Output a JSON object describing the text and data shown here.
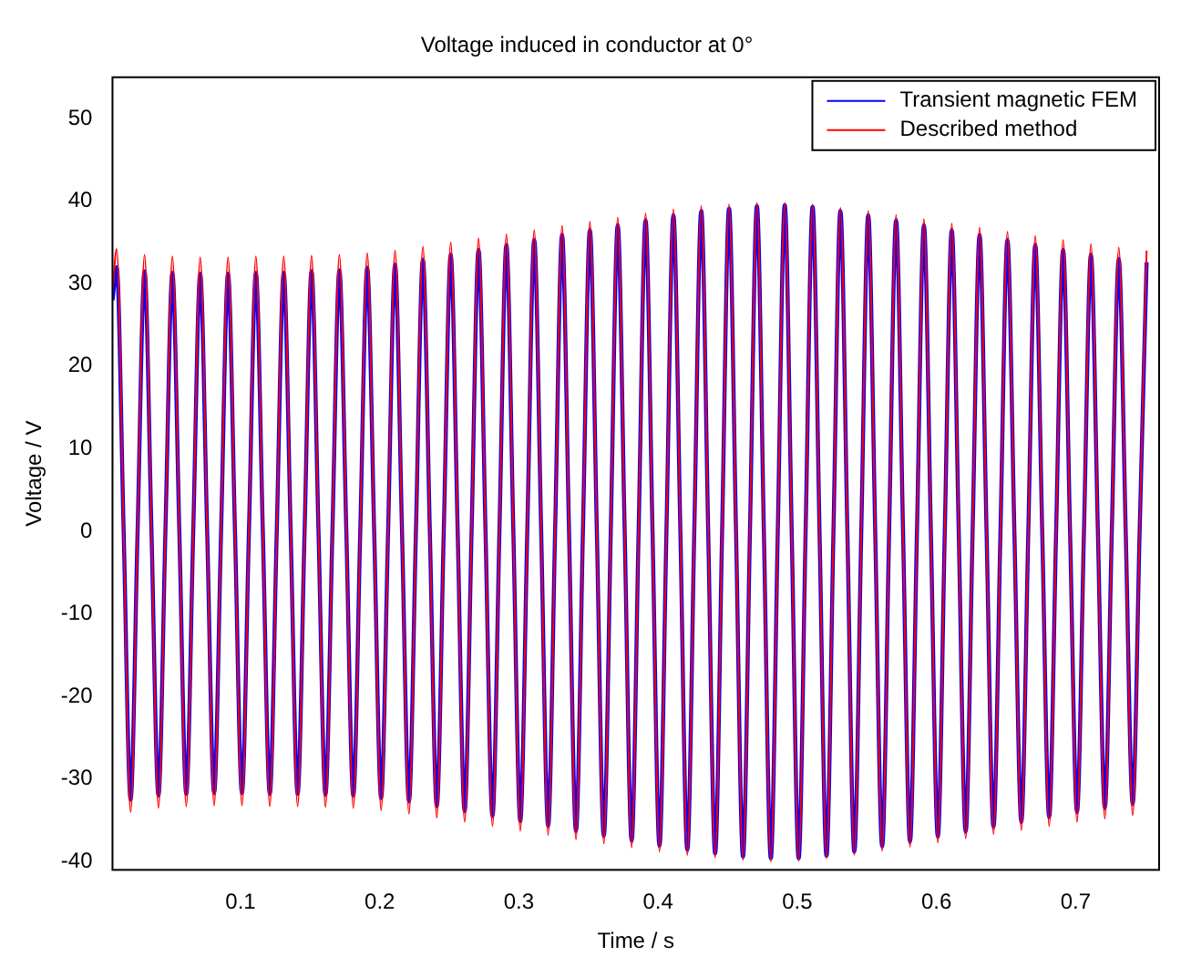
{
  "chart_data": {
    "type": "line",
    "title": "Voltage induced in conductor at 0°",
    "xlabel": "Time / s",
    "ylabel": "Voltage / V",
    "x": [
      0.008,
      0.011,
      0.016,
      0.021,
      0.026,
      0.031,
      0.036,
      0.041,
      0.046,
      0.051,
      0.056,
      0.061,
      0.066,
      0.071,
      0.076,
      0.081,
      0.086,
      0.091,
      0.096,
      0.101,
      0.106,
      0.111,
      0.116,
      0.121,
      0.126,
      0.131,
      0.136,
      0.141,
      0.146,
      0.151,
      0.156,
      0.161,
      0.166,
      0.171,
      0.176,
      0.181,
      0.186,
      0.191,
      0.196,
      0.201,
      0.206,
      0.211,
      0.216,
      0.221,
      0.226,
      0.231,
      0.236,
      0.241,
      0.246,
      0.251,
      0.256,
      0.261,
      0.266,
      0.271,
      0.276,
      0.281,
      0.286,
      0.291,
      0.296,
      0.301,
      0.306,
      0.311,
      0.316,
      0.321,
      0.326,
      0.331,
      0.336,
      0.341,
      0.346,
      0.351,
      0.356,
      0.361,
      0.366,
      0.371,
      0.376,
      0.381,
      0.386,
      0.391,
      0.396,
      0.401,
      0.406,
      0.411,
      0.416,
      0.421,
      0.426,
      0.431,
      0.436,
      0.441,
      0.446,
      0.451,
      0.456,
      0.461,
      0.466,
      0.471,
      0.476,
      0.481,
      0.486,
      0.491,
      0.496,
      0.501,
      0.506,
      0.511,
      0.516,
      0.521,
      0.526,
      0.531,
      0.536,
      0.541,
      0.546,
      0.551,
      0.556,
      0.561,
      0.566,
      0.571,
      0.576,
      0.581,
      0.586,
      0.591,
      0.596,
      0.601,
      0.606,
      0.611,
      0.616,
      0.621,
      0.626,
      0.631,
      0.636,
      0.641,
      0.646,
      0.651,
      0.656,
      0.661,
      0.666,
      0.671,
      0.676,
      0.681,
      0.686,
      0.691,
      0.696,
      0.701,
      0.706,
      0.711,
      0.716,
      0.721,
      0.726,
      0.731,
      0.736,
      0.741,
      0.746,
      0.751
    ],
    "series": [
      {
        "name": "Transient magnetic FEM",
        "color": "#0000ff",
        "values": [
          28,
          32,
          0,
          -32.5,
          0,
          31.5,
          0,
          -32,
          0,
          31.3,
          0,
          -31.8,
          0,
          31.2,
          0,
          -31.7,
          0,
          31.2,
          0,
          -31.7,
          0,
          31.3,
          0,
          -31.8,
          0,
          31.3,
          0,
          -31.8,
          0,
          31.5,
          0,
          -31.9,
          0,
          31.6,
          0,
          -32,
          0,
          31.9,
          0,
          -32.3,
          0,
          32.3,
          0,
          -32.7,
          0,
          32.9,
          0,
          -33.3,
          0,
          33.5,
          0,
          -33.9,
          0,
          34.1,
          0,
          -34.5,
          0,
          34.7,
          0,
          -35.1,
          0,
          35.3,
          0,
          -35.7,
          0,
          35.9,
          0,
          -36.3,
          0,
          36.5,
          0,
          -36.9,
          0,
          37.1,
          0,
          -37.5,
          0,
          37.7,
          0,
          -38.1,
          0,
          38.3,
          0,
          -38.6,
          0,
          38.8,
          0,
          -39,
          0,
          39.1,
          0,
          -39.4,
          0,
          39.4,
          0,
          -39.6,
          0,
          39.5,
          0,
          -39.6,
          0,
          39.3,
          0,
          -39.3,
          0,
          38.8,
          0,
          -38.8,
          0,
          38.3,
          0,
          -38.2,
          0,
          37.7,
          0,
          -37.6,
          0,
          37.1,
          0,
          -37,
          0,
          36.5,
          0,
          -36.4,
          0,
          35.9,
          0,
          -35.8,
          0,
          35.3,
          0,
          -35.2,
          0,
          34.7,
          0,
          -34.6,
          0,
          34.1,
          0,
          -34,
          0,
          33.5,
          0,
          -33.5,
          0,
          33,
          0,
          -33,
          0,
          32.6
        ]
      },
      {
        "name": "Described method",
        "color": "#ff0000",
        "values": [
          29,
          34.2,
          0,
          -34,
          0,
          33.5,
          0,
          -33.5,
          0,
          33.3,
          0,
          -33.3,
          0,
          33.2,
          0,
          -33.2,
          0,
          33.2,
          0,
          -33.2,
          0,
          33.3,
          0,
          -33.3,
          0,
          33.3,
          0,
          -33.3,
          0,
          33.4,
          0,
          -33.4,
          0,
          33.5,
          0,
          -33.5,
          0,
          33.7,
          0,
          -33.8,
          0,
          34,
          0,
          -34.2,
          0,
          34.5,
          0,
          -34.7,
          0,
          35,
          0,
          -35.2,
          0,
          35.5,
          0,
          -35.7,
          0,
          36,
          0,
          -36.3,
          0,
          36.5,
          0,
          -36.8,
          0,
          37,
          0,
          -37.3,
          0,
          37.5,
          0,
          -37.8,
          0,
          38,
          0,
          -38.3,
          0,
          38.5,
          0,
          -38.8,
          0,
          39,
          0,
          -39.2,
          0,
          39.4,
          0,
          -39.5,
          0,
          39.6,
          0,
          -39.8,
          0,
          39.8,
          0,
          -40,
          0,
          39.8,
          0,
          -39.9,
          0,
          39.6,
          0,
          -39.6,
          0,
          39.2,
          0,
          -39.2,
          0,
          38.8,
          0,
          -38.7,
          0,
          38.3,
          0,
          -38.2,
          0,
          37.8,
          0,
          -37.7,
          0,
          37.3,
          0,
          -37.2,
          0,
          36.8,
          0,
          -36.7,
          0,
          36.3,
          0,
          -36.2,
          0,
          35.8,
          0,
          -35.7,
          0,
          35.3,
          0,
          -35.2,
          0,
          34.8,
          0,
          -34.8,
          0,
          34.4,
          0,
          -34.4,
          0,
          34
        ]
      }
    ],
    "xlim": [
      0.008,
      0.76
    ],
    "ylim": [
      -41,
      55
    ],
    "xticks": [
      0.1,
      0.2,
      0.3,
      0.4,
      0.5,
      0.6,
      0.7
    ],
    "yticks": [
      -40,
      -30,
      -20,
      -10,
      0,
      10,
      20,
      30,
      40,
      50
    ],
    "grid": false,
    "legend": "top right",
    "marker": "none",
    "line_style": "solid"
  }
}
